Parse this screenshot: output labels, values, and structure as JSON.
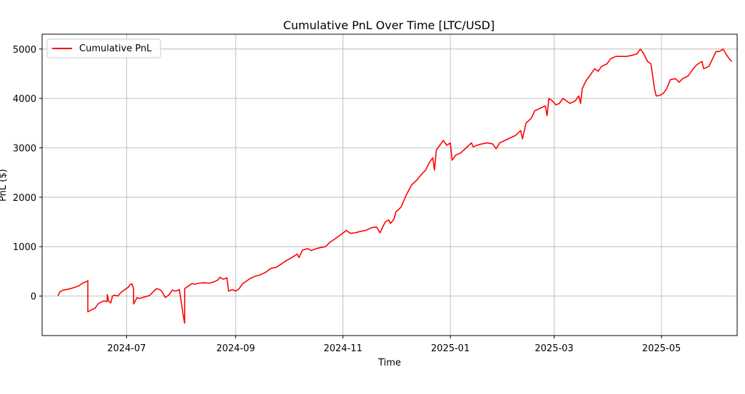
{
  "chart_data": {
    "type": "line",
    "title": "Cumulative PnL Over Time [LTC/USD]",
    "xlabel": "Time",
    "ylabel": "PnL ($)",
    "x_tick_labels": [
      "2024-07",
      "2024-09",
      "2024-11",
      "2025-01",
      "2025-03",
      "2025-05"
    ],
    "x_ticks": [
      "2024-07-01",
      "2024-09-01",
      "2024-11-01",
      "2025-01-01",
      "2025-03-01",
      "2025-05-01"
    ],
    "y_ticks": [
      0,
      1000,
      2000,
      3000,
      4000,
      5000
    ],
    "y_tick_labels": [
      "0",
      "1000",
      "2000",
      "3000",
      "4000",
      "5000"
    ],
    "xlim": [
      "2024-05-14",
      "2025-06-13"
    ],
    "ylim": [
      -800,
      5300
    ],
    "grid": true,
    "legend_position": "top-left",
    "series": [
      {
        "name": "Cumulative PnL",
        "color": "#ff0000",
        "points": [
          [
            "2024-05-23",
            0
          ],
          [
            "2024-05-24",
            80
          ],
          [
            "2024-05-26",
            120
          ],
          [
            "2024-05-29",
            140
          ],
          [
            "2024-06-01",
            170
          ],
          [
            "2024-06-04",
            210
          ],
          [
            "2024-06-06",
            260
          ],
          [
            "2024-06-08",
            290
          ],
          [
            "2024-06-09",
            310
          ],
          [
            "2024-06-09",
            -320
          ],
          [
            "2024-06-11",
            -280
          ],
          [
            "2024-06-13",
            -250
          ],
          [
            "2024-06-15",
            -150
          ],
          [
            "2024-06-18",
            -100
          ],
          [
            "2024-06-20",
            -110
          ],
          [
            "2024-06-20",
            30
          ],
          [
            "2024-06-21",
            -110
          ],
          [
            "2024-06-22",
            -140
          ],
          [
            "2024-06-23",
            0
          ],
          [
            "2024-06-24",
            20
          ],
          [
            "2024-06-26",
            0
          ],
          [
            "2024-06-28",
            80
          ],
          [
            "2024-06-30",
            130
          ],
          [
            "2024-07-02",
            180
          ],
          [
            "2024-07-03",
            230
          ],
          [
            "2024-07-04",
            250
          ],
          [
            "2024-07-05",
            150
          ],
          [
            "2024-07-05",
            -160
          ],
          [
            "2024-07-07",
            -30
          ],
          [
            "2024-07-08",
            -50
          ],
          [
            "2024-07-10",
            -30
          ],
          [
            "2024-07-12",
            -10
          ],
          [
            "2024-07-14",
            10
          ],
          [
            "2024-07-16",
            80
          ],
          [
            "2024-07-18",
            150
          ],
          [
            "2024-07-20",
            130
          ],
          [
            "2024-07-21",
            100
          ],
          [
            "2024-07-23",
            -30
          ],
          [
            "2024-07-25",
            20
          ],
          [
            "2024-07-27",
            120
          ],
          [
            "2024-07-29",
            100
          ],
          [
            "2024-07-31",
            130
          ],
          [
            "2024-08-01",
            -100
          ],
          [
            "2024-08-02",
            -350
          ],
          [
            "2024-08-03",
            -550
          ],
          [
            "2024-08-03",
            150
          ],
          [
            "2024-08-05",
            200
          ],
          [
            "2024-08-07",
            250
          ],
          [
            "2024-08-09",
            240
          ],
          [
            "2024-08-11",
            260
          ],
          [
            "2024-08-14",
            270
          ],
          [
            "2024-08-17",
            260
          ],
          [
            "2024-08-20",
            290
          ],
          [
            "2024-08-22",
            330
          ],
          [
            "2024-08-23",
            380
          ],
          [
            "2024-08-25",
            340
          ],
          [
            "2024-08-27",
            370
          ],
          [
            "2024-08-28",
            100
          ],
          [
            "2024-08-30",
            130
          ],
          [
            "2024-09-01",
            100
          ],
          [
            "2024-09-03",
            150
          ],
          [
            "2024-09-05",
            250
          ],
          [
            "2024-09-07",
            300
          ],
          [
            "2024-09-09",
            350
          ],
          [
            "2024-09-12",
            400
          ],
          [
            "2024-09-15",
            430
          ],
          [
            "2024-09-18",
            480
          ],
          [
            "2024-09-21",
            560
          ],
          [
            "2024-09-24",
            580
          ],
          [
            "2024-09-27",
            650
          ],
          [
            "2024-09-30",
            720
          ],
          [
            "2024-10-03",
            780
          ],
          [
            "2024-10-06",
            850
          ],
          [
            "2024-10-07",
            780
          ],
          [
            "2024-10-09",
            930
          ],
          [
            "2024-10-12",
            960
          ],
          [
            "2024-10-14",
            920
          ],
          [
            "2024-10-16",
            950
          ],
          [
            "2024-10-19",
            980
          ],
          [
            "2024-10-22",
            1000
          ],
          [
            "2024-10-25",
            1100
          ],
          [
            "2024-10-28",
            1170
          ],
          [
            "2024-10-31",
            1250
          ],
          [
            "2024-11-03",
            1330
          ],
          [
            "2024-11-05",
            1270
          ],
          [
            "2024-11-08",
            1280
          ],
          [
            "2024-11-11",
            1310
          ],
          [
            "2024-11-14",
            1330
          ],
          [
            "2024-11-17",
            1380
          ],
          [
            "2024-11-20",
            1400
          ],
          [
            "2024-11-22",
            1280
          ],
          [
            "2024-11-25",
            1500
          ],
          [
            "2024-11-27",
            1540
          ],
          [
            "2024-11-28",
            1470
          ],
          [
            "2024-11-30",
            1560
          ],
          [
            "2024-12-01",
            1700
          ],
          [
            "2024-12-04",
            1800
          ],
          [
            "2024-12-07",
            2050
          ],
          [
            "2024-12-10",
            2250
          ],
          [
            "2024-12-13",
            2350
          ],
          [
            "2024-12-16",
            2480
          ],
          [
            "2024-12-18",
            2550
          ],
          [
            "2024-12-20",
            2700
          ],
          [
            "2024-12-22",
            2800
          ],
          [
            "2024-12-23",
            2550
          ],
          [
            "2024-12-24",
            2950
          ],
          [
            "2024-12-26",
            3050
          ],
          [
            "2024-12-28",
            3150
          ],
          [
            "2024-12-30",
            3050
          ],
          [
            "2025-01-01",
            3100
          ],
          [
            "2025-01-02",
            2750
          ],
          [
            "2025-01-04",
            2850
          ],
          [
            "2025-01-07",
            2900
          ],
          [
            "2025-01-10",
            3000
          ],
          [
            "2025-01-13",
            3100
          ],
          [
            "2025-01-14",
            3020
          ],
          [
            "2025-01-16",
            3050
          ],
          [
            "2025-01-19",
            3080
          ],
          [
            "2025-01-22",
            3100
          ],
          [
            "2025-01-25",
            3080
          ],
          [
            "2025-01-27",
            2980
          ],
          [
            "2025-01-29",
            3100
          ],
          [
            "2025-02-01",
            3150
          ],
          [
            "2025-02-04",
            3200
          ],
          [
            "2025-02-07",
            3250
          ],
          [
            "2025-02-10",
            3350
          ],
          [
            "2025-02-11",
            3180
          ],
          [
            "2025-02-13",
            3500
          ],
          [
            "2025-02-16",
            3600
          ],
          [
            "2025-02-18",
            3750
          ],
          [
            "2025-02-21",
            3800
          ],
          [
            "2025-02-24",
            3850
          ],
          [
            "2025-02-25",
            3650
          ],
          [
            "2025-02-26",
            4000
          ],
          [
            "2025-02-28",
            3950
          ],
          [
            "2025-03-02",
            3870
          ],
          [
            "2025-03-04",
            3900
          ],
          [
            "2025-03-06",
            4000
          ],
          [
            "2025-03-08",
            3950
          ],
          [
            "2025-03-10",
            3900
          ],
          [
            "2025-03-13",
            3950
          ],
          [
            "2025-03-15",
            4050
          ],
          [
            "2025-03-16",
            3900
          ],
          [
            "2025-03-17",
            4200
          ],
          [
            "2025-03-19",
            4350
          ],
          [
            "2025-03-22",
            4500
          ],
          [
            "2025-03-24",
            4600
          ],
          [
            "2025-03-26",
            4550
          ],
          [
            "2025-03-28",
            4650
          ],
          [
            "2025-03-31",
            4700
          ],
          [
            "2025-04-02",
            4800
          ],
          [
            "2025-04-05",
            4850
          ],
          [
            "2025-04-08",
            4850
          ],
          [
            "2025-04-11",
            4850
          ],
          [
            "2025-04-14",
            4870
          ],
          [
            "2025-04-17",
            4900
          ],
          [
            "2025-04-19",
            5000
          ],
          [
            "2025-04-21",
            4900
          ],
          [
            "2025-04-23",
            4750
          ],
          [
            "2025-04-25",
            4700
          ],
          [
            "2025-04-27",
            4200
          ],
          [
            "2025-04-28",
            4050
          ],
          [
            "2025-04-30",
            4060
          ],
          [
            "2025-05-02",
            4100
          ],
          [
            "2025-05-04",
            4200
          ],
          [
            "2025-05-06",
            4380
          ],
          [
            "2025-05-09",
            4400
          ],
          [
            "2025-05-11",
            4330
          ],
          [
            "2025-05-13",
            4400
          ],
          [
            "2025-05-16",
            4450
          ],
          [
            "2025-05-19",
            4600
          ],
          [
            "2025-05-21",
            4680
          ],
          [
            "2025-05-24",
            4750
          ],
          [
            "2025-05-25",
            4600
          ],
          [
            "2025-05-28",
            4650
          ],
          [
            "2025-05-30",
            4800
          ],
          [
            "2025-06-01",
            4950
          ],
          [
            "2025-06-03",
            4950
          ],
          [
            "2025-06-05",
            5000
          ],
          [
            "2025-06-07",
            4880
          ],
          [
            "2025-06-09",
            4780
          ],
          [
            "2025-06-10",
            4750
          ]
        ]
      }
    ]
  }
}
